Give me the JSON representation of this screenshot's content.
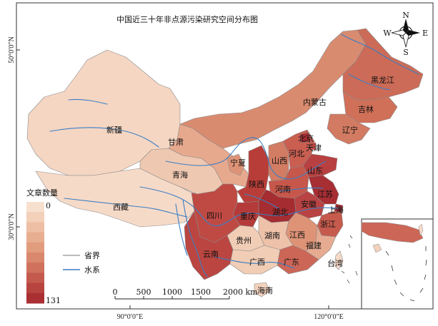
{
  "title": "中国近三十年非点源污染研究空间分布图",
  "compass": {
    "n": "N",
    "s": "S",
    "e": "E",
    "w": "W"
  },
  "graticule": {
    "lat_50": "50°0′0″N",
    "lat_30": "30°0′0″N",
    "lon_90": "90°0′0″E",
    "lon_120": "120°0′0″E"
  },
  "legend": {
    "title": "文章数量",
    "min": "0",
    "max": "131",
    "ramp_colors": [
      "#f8e0cf",
      "#f3d0b9",
      "#eebfa4",
      "#e8ae90",
      "#e29c7e",
      "#d9876d",
      "#d0715d",
      "#c45a4e",
      "#b84440",
      "#a92f33"
    ],
    "boundary_label": "省界",
    "river_label": "水系",
    "boundary_color": "#777777",
    "river_color": "#3b7fc4"
  },
  "scalebar": {
    "ticks": [
      "0",
      "500",
      "1000",
      "1500",
      "2000 km"
    ]
  },
  "provinces": {
    "xinjiang": "新疆",
    "xizang": "西藏",
    "qinghai": "青海",
    "gansu": "甘肃",
    "neimenggu": "内蒙古",
    "heilongjiang": "黑龙江",
    "jilin": "吉林",
    "liaoning": "辽宁",
    "beijing": "北京",
    "tianjin": "天津",
    "hebei": "河北",
    "shanxi": "山西",
    "ningxia": "宁夏",
    "shaanxi": "陕西",
    "henan": "河南",
    "shandong": "山东",
    "jiangsu": "江苏",
    "anhui": "安徽",
    "shanghai": "上海",
    "hubei": "湖北",
    "sichuan": "四川",
    "chongqing": "重庆",
    "zhejiang": "浙江",
    "guizhou": "贵州",
    "hunan": "湖南",
    "jiangxi": "江西",
    "fujian": "福建",
    "yunnan": "云南",
    "guangxi": "广西",
    "guangdong": "广东",
    "taiwan": "台湾",
    "hainan": "海南"
  }
}
